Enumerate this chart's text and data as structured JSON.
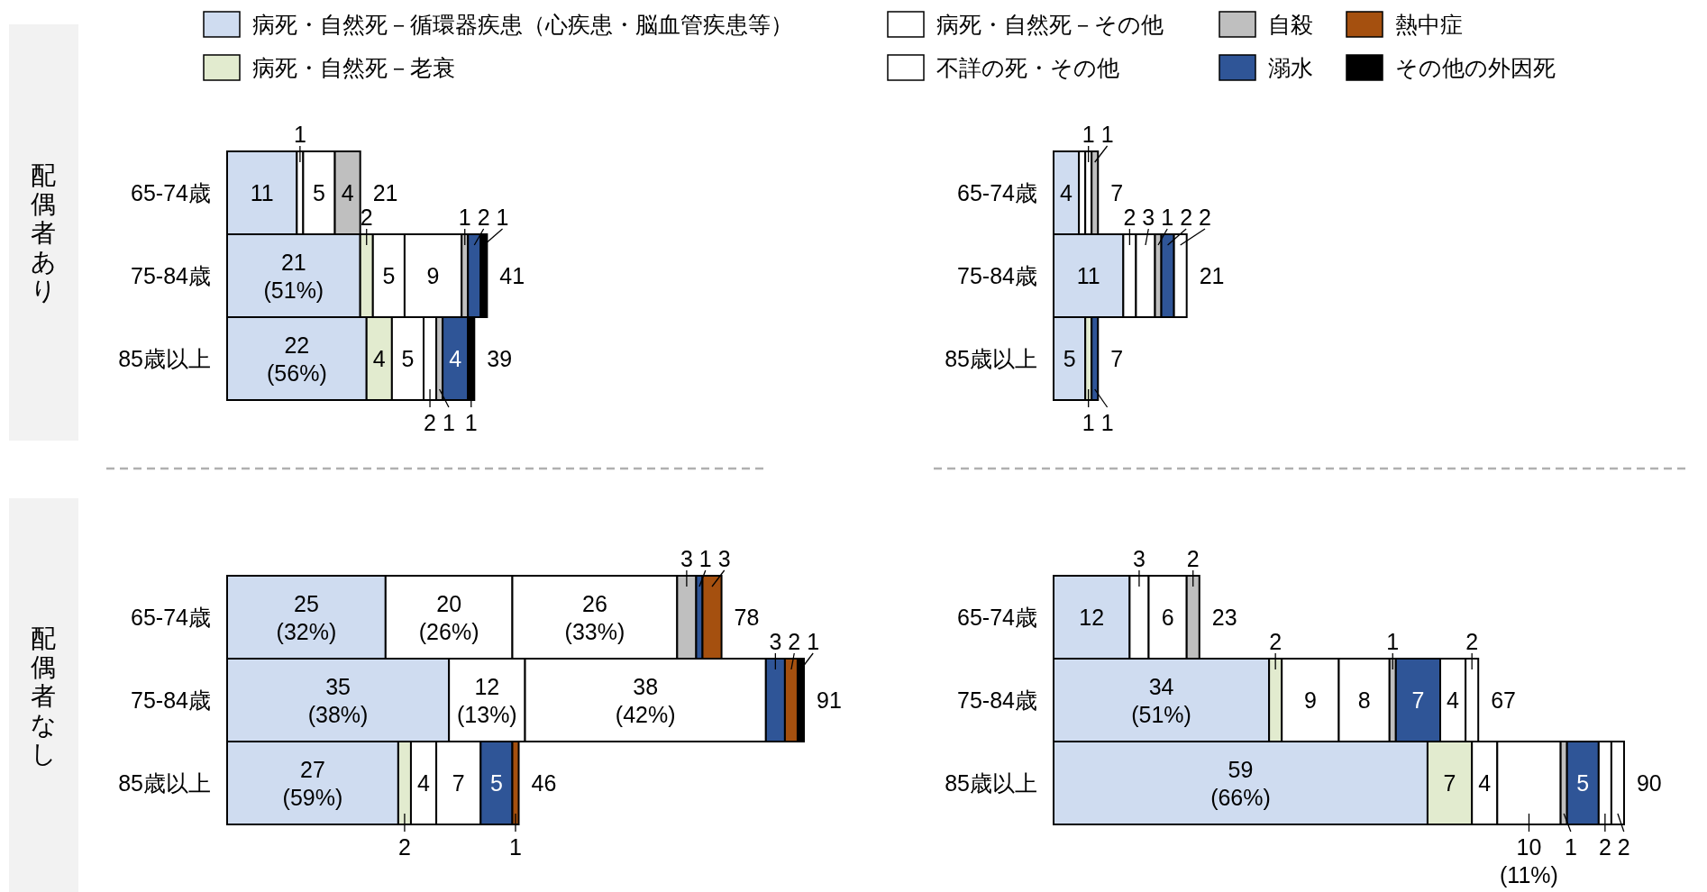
{
  "chart_data": [
    {
      "type": "bar",
      "orientation": "horizontal",
      "stacked": true,
      "ylabel": "配偶者あり",
      "legend": "top",
      "categories": [
        "65-74歳",
        "75-84歳",
        "85歳以上"
      ],
      "totals": [
        "21",
        "41",
        "39"
      ],
      "series": [
        {
          "name": "病死・自然死－循環器疾患（心疾患・脳血管疾患等）",
          "color": "#cfdcf0",
          "values": [
            11,
            21,
            22
          ],
          "value_labels": [
            "11",
            "21\n(51%)",
            "22\n(56%)"
          ]
        },
        {
          "name": "病死・自然死－老衰",
          "color": "#e2ebcf",
          "values": [
            null,
            2,
            4
          ],
          "value_labels": [
            null,
            "2",
            "4"
          ]
        },
        {
          "name": "病死・自然死－その他",
          "color": "#ffffff",
          "values": [
            1,
            5,
            5
          ],
          "value_labels": [
            "1",
            "5",
            "5"
          ]
        },
        {
          "name": "不詳の死・その他",
          "color": "#ffffff",
          "values": [
            5,
            9,
            2
          ],
          "value_labels": [
            "5",
            "9",
            "2"
          ]
        },
        {
          "name": "自殺",
          "color": "#bfbfbf",
          "values": [
            4,
            1,
            1
          ],
          "value_labels": [
            "4",
            "1",
            "1"
          ]
        },
        {
          "name": "溺水",
          "color": "#2f5597",
          "values": [
            null,
            2,
            4
          ],
          "value_labels": [
            null,
            "2",
            "4"
          ]
        },
        {
          "name": "熱中症",
          "color": "#a5500f",
          "values": [
            null,
            null,
            null
          ],
          "value_labels": [
            null,
            null,
            null
          ]
        },
        {
          "name": "その他の外因死",
          "color": "#000000",
          "values": [
            null,
            1,
            1
          ],
          "value_labels": [
            null,
            "1",
            "1"
          ]
        }
      ]
    },
    {
      "type": "bar",
      "orientation": "horizontal",
      "stacked": true,
      "categories": [
        "65-74歳",
        "75-84歳",
        "85歳以上"
      ],
      "totals": [
        "7",
        "21",
        "7"
      ],
      "series": [
        {
          "color": "#cfdcf0",
          "values": [
            4,
            11,
            5
          ],
          "value_labels": [
            "4",
            "11",
            "5"
          ]
        },
        {
          "color": "#e2ebcf",
          "values": [
            null,
            null,
            1
          ],
          "value_labels": [
            null,
            null,
            "1"
          ]
        },
        {
          "color": "#ffffff",
          "values": [
            1,
            2,
            null
          ],
          "value_labels": [
            null,
            "2",
            null
          ]
        },
        {
          "color": "#ffffff",
          "values": [
            1,
            3,
            null
          ],
          "value_labels": [
            "1",
            "3",
            null
          ]
        },
        {
          "color": "#bfbfbf",
          "values": [
            1,
            1,
            null
          ],
          "value_labels": [
            "1",
            "1",
            null
          ]
        },
        {
          "color": "#2f5597",
          "values": [
            null,
            2,
            1
          ],
          "value_labels": [
            null,
            "2",
            "1"
          ]
        },
        {
          "color": "#ffffff",
          "values": [
            null,
            2,
            null
          ],
          "value_labels": [
            null,
            "2",
            null
          ]
        }
      ]
    },
    {
      "type": "bar",
      "orientation": "horizontal",
      "stacked": true,
      "ylabel": "配偶者なし",
      "categories": [
        "65-74歳",
        "75-84歳",
        "85歳以上"
      ],
      "totals": [
        "78",
        "91",
        "46"
      ],
      "series": [
        {
          "color": "#cfdcf0",
          "values": [
            25,
            35,
            27
          ],
          "value_labels": [
            "25\n(32%)",
            "35\n(38%)",
            "27\n(59%)"
          ]
        },
        {
          "color": "#e2ebcf",
          "values": [
            null,
            null,
            2
          ],
          "value_labels": [
            null,
            null,
            "2"
          ]
        },
        {
          "color": "#ffffff",
          "values": [
            20,
            12,
            4
          ],
          "value_labels": [
            "20\n(26%)",
            "12\n(13%)",
            "4"
          ]
        },
        {
          "color": "#ffffff",
          "values": [
            26,
            38,
            7
          ],
          "value_labels": [
            "26\n(33%)",
            "38\n(42%)",
            "7"
          ]
        },
        {
          "color": "#bfbfbf",
          "values": [
            3,
            null,
            null
          ],
          "value_labels": [
            "3",
            null,
            null
          ]
        },
        {
          "color": "#2f5597",
          "values": [
            1,
            3,
            5
          ],
          "value_labels": [
            "1",
            "3",
            "5"
          ]
        },
        {
          "color": "#a5500f",
          "values": [
            3,
            2,
            1
          ],
          "value_labels": [
            "3",
            "2",
            "1"
          ]
        },
        {
          "color": "#000000",
          "values": [
            null,
            1,
            null
          ],
          "value_labels": [
            null,
            "1",
            null
          ]
        }
      ]
    },
    {
      "type": "bar",
      "orientation": "horizontal",
      "stacked": true,
      "categories": [
        "65-74歳",
        "75-84歳",
        "85歳以上"
      ],
      "totals": [
        "23",
        "67",
        "90"
      ],
      "series": [
        {
          "color": "#cfdcf0",
          "values": [
            12,
            34,
            59
          ],
          "value_labels": [
            "12",
            "34\n(51%)",
            "59\n(66%)"
          ]
        },
        {
          "color": "#e2ebcf",
          "values": [
            null,
            2,
            7
          ],
          "value_labels": [
            null,
            "2",
            "7"
          ]
        },
        {
          "color": "#ffffff",
          "values": [
            3,
            9,
            4
          ],
          "value_labels": [
            "3",
            "9",
            "4"
          ]
        },
        {
          "color": "#ffffff",
          "values": [
            6,
            8,
            10
          ],
          "value_labels": [
            "6",
            "8",
            "10\n(11%)"
          ]
        },
        {
          "color": "#bfbfbf",
          "values": [
            2,
            1,
            1
          ],
          "value_labels": [
            "2",
            "1",
            "1"
          ]
        },
        {
          "color": "#2f5597",
          "values": [
            null,
            7,
            5
          ],
          "value_labels": [
            null,
            "7",
            "5"
          ]
        },
        {
          "color": "#ffffff",
          "values": [
            null,
            4,
            2
          ],
          "value_labels": [
            null,
            "4",
            "2"
          ]
        },
        {
          "color": "#ffffff",
          "values": [
            null,
            2,
            2
          ],
          "value_labels": [
            null,
            "2",
            "2"
          ]
        }
      ]
    }
  ]
}
